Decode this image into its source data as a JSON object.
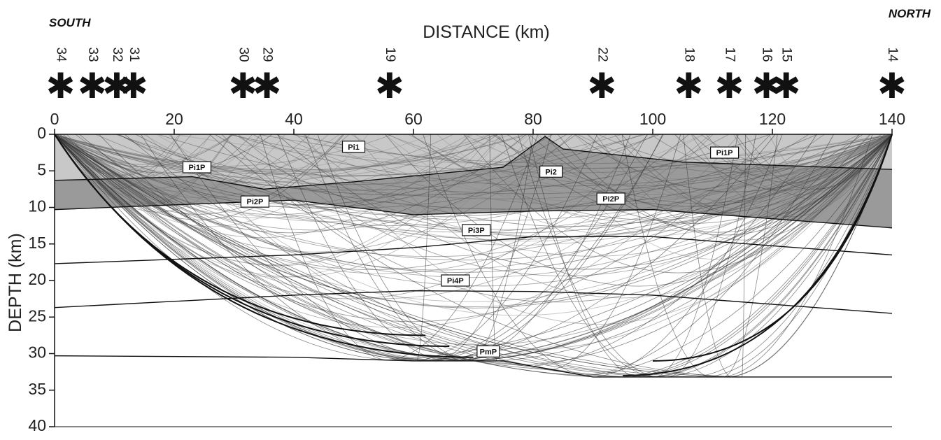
{
  "chart_data": {
    "type": "line",
    "title": "",
    "xlabel": "DISTANCE (km)",
    "ylabel": "DEPTH (km)",
    "xlim": [
      0,
      140
    ],
    "ylim": [
      0,
      40
    ],
    "y_inverted": true,
    "x_axis_position": "top",
    "x_ticks": [
      "0",
      "20",
      "40",
      "60",
      "80",
      "100",
      "120",
      "140"
    ],
    "y_ticks": [
      "0",
      "5",
      "10",
      "15",
      "20",
      "25",
      "30",
      "35",
      "40"
    ],
    "corner_labels": {
      "left": "SOUTH",
      "right": "NORTH"
    },
    "stations": [
      {
        "label": "34",
        "x": 1.0
      },
      {
        "label": "33",
        "x": 6.3
      },
      {
        "label": "32",
        "x": 10.4
      },
      {
        "label": "31",
        "x": 13.2
      },
      {
        "label": "30",
        "x": 31.5
      },
      {
        "label": "29",
        "x": 35.5
      },
      {
        "label": "19",
        "x": 56.0
      },
      {
        "label": "22",
        "x": 91.5
      },
      {
        "label": "18",
        "x": 106.0
      },
      {
        "label": "17",
        "x": 112.8
      },
      {
        "label": "16",
        "x": 119.0
      },
      {
        "label": "15",
        "x": 122.3
      },
      {
        "label": "14",
        "x": 140.0
      }
    ],
    "interfaces": [
      {
        "points": [
          [
            0,
            6.3
          ],
          [
            23,
            5.8
          ],
          [
            35,
            7.5
          ],
          [
            50,
            6.5
          ],
          [
            75,
            4.5
          ],
          [
            82,
            0.3
          ],
          [
            85,
            2.0
          ],
          [
            105,
            3.8
          ],
          [
            140,
            4.8
          ]
        ]
      },
      {
        "points": [
          [
            0,
            10.3
          ],
          [
            40,
            9.0
          ],
          [
            60,
            11.0
          ],
          [
            80,
            10.5
          ],
          [
            100,
            10.3
          ],
          [
            140,
            12.8
          ]
        ]
      },
      {
        "points": [
          [
            0,
            17.7
          ],
          [
            40,
            16.5
          ],
          [
            60,
            15.5
          ],
          [
            80,
            14.0
          ],
          [
            100,
            14.0
          ],
          [
            140,
            16.5
          ]
        ]
      },
      {
        "points": [
          [
            0,
            23.7
          ],
          [
            40,
            22.0
          ],
          [
            60,
            21.4
          ],
          [
            80,
            21.5
          ],
          [
            100,
            22.0
          ],
          [
            140,
            24.5
          ]
        ]
      },
      {
        "points": [
          [
            0,
            30.3
          ],
          [
            40,
            30.5
          ],
          [
            60,
            31.0
          ],
          [
            75,
            31.0
          ],
          [
            90,
            33.2
          ],
          [
            140,
            33.2
          ]
        ]
      }
    ],
    "phase_labels": [
      {
        "text": "Pi1",
        "x": 50.0,
        "y": 1.7
      },
      {
        "text": "Pi1P",
        "x": 23.8,
        "y": 4.5
      },
      {
        "text": "Pi1P",
        "x": 112.0,
        "y": 2.5
      },
      {
        "text": "Pi2",
        "x": 83.0,
        "y": 5.1
      },
      {
        "text": "Pi2P",
        "x": 33.5,
        "y": 9.2
      },
      {
        "text": "Pi2P",
        "x": 93.0,
        "y": 8.8
      },
      {
        "text": "Pi3P",
        "x": 70.5,
        "y": 13.1
      },
      {
        "text": "Pi4P",
        "x": 67.0,
        "y": 20.0
      },
      {
        "text": "PmP",
        "x": 72.5,
        "y": 29.7
      }
    ],
    "grid": false,
    "legend": "none"
  }
}
